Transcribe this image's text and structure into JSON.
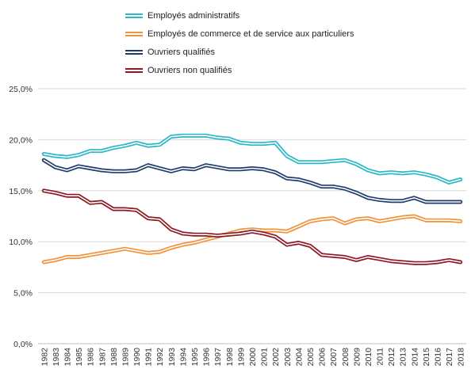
{
  "chart_data": {
    "type": "line",
    "title": "",
    "xlabel": "",
    "ylabel": "",
    "ylim": [
      0,
      25
    ],
    "yticks": [
      "0,0%",
      "5,0%",
      "10,0%",
      "15,0%",
      "20,0%",
      "25,0%"
    ],
    "grid": true,
    "legend_position": "top",
    "x": [
      "1982",
      "1983",
      "1984",
      "1985",
      "1986",
      "1987",
      "1988",
      "1989",
      "1990",
      "1991",
      "1992",
      "1993",
      "1994",
      "1995",
      "1996",
      "1997",
      "1998",
      "1999",
      "2000",
      "2001",
      "2002",
      "2003",
      "2004",
      "2005",
      "2006",
      "2007",
      "2008",
      "2009",
      "2010",
      "2011",
      "2012",
      "2013",
      "2014",
      "2015",
      "2016",
      "2017",
      "2018"
    ],
    "series": [
      {
        "name": "Employés administratifs",
        "color": "#2ab7c6",
        "values": [
          18.6,
          18.4,
          18.3,
          18.5,
          18.9,
          18.9,
          19.2,
          19.4,
          19.7,
          19.4,
          19.5,
          20.3,
          20.4,
          20.4,
          20.4,
          20.2,
          20.1,
          19.7,
          19.6,
          19.6,
          19.7,
          18.4,
          17.8,
          17.8,
          17.8,
          17.9,
          18.0,
          17.6,
          17.0,
          16.7,
          16.8,
          16.7,
          16.8,
          16.6,
          16.3,
          15.8,
          16.1
        ]
      },
      {
        "name": "Employés de commerce et de service aux particuliers",
        "color": "#f0933a",
        "values": [
          8.0,
          8.2,
          8.5,
          8.5,
          8.7,
          8.9,
          9.1,
          9.3,
          9.1,
          8.9,
          9.0,
          9.4,
          9.7,
          9.9,
          10.2,
          10.5,
          10.8,
          11.1,
          11.2,
          11.1,
          11.1,
          11.0,
          11.5,
          12.0,
          12.2,
          12.3,
          11.8,
          12.2,
          12.3,
          12.0,
          12.2,
          12.4,
          12.5,
          12.1,
          12.1,
          12.1,
          12.0
        ]
      },
      {
        "name": "Ouvriers qualifiés",
        "color": "#1f3c6b",
        "values": [
          18.0,
          17.3,
          17.0,
          17.4,
          17.2,
          17.0,
          16.9,
          16.9,
          17.0,
          17.5,
          17.2,
          16.9,
          17.2,
          17.1,
          17.5,
          17.3,
          17.1,
          17.1,
          17.2,
          17.1,
          16.8,
          16.2,
          16.1,
          15.8,
          15.4,
          15.4,
          15.2,
          14.8,
          14.3,
          14.1,
          14.0,
          14.0,
          14.3,
          13.9,
          13.9,
          13.9,
          13.9
        ]
      },
      {
        "name": "Ouvriers non qualifiés",
        "color": "#8b1a24",
        "values": [
          15.0,
          14.8,
          14.5,
          14.5,
          13.8,
          13.9,
          13.2,
          13.2,
          13.1,
          12.3,
          12.2,
          11.2,
          10.8,
          10.7,
          10.7,
          10.6,
          10.7,
          10.8,
          11.0,
          10.8,
          10.5,
          9.7,
          9.9,
          9.6,
          8.7,
          8.6,
          8.5,
          8.2,
          8.5,
          8.3,
          8.1,
          8.0,
          7.9,
          7.9,
          8.0,
          8.2,
          8.0
        ]
      }
    ]
  }
}
